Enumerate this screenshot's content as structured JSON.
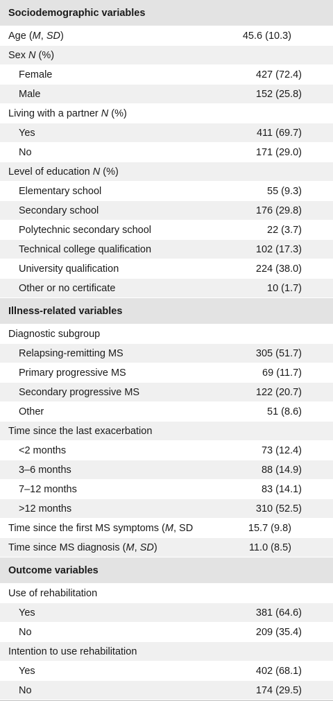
{
  "rows": [
    {
      "type": "section",
      "label": "Sociodemographic variables"
    },
    {
      "type": "row",
      "indent": false,
      "shaded": false,
      "label_html": "Age (<i>M</i>, <i>SD</i>)",
      "value": "45.6 (10.3)"
    },
    {
      "type": "row",
      "indent": false,
      "shaded": true,
      "label_html": "Sex <i>N</i> (%)",
      "value": ""
    },
    {
      "type": "row",
      "indent": true,
      "shaded": false,
      "label_html": "Female",
      "value": "427 (72.4)"
    },
    {
      "type": "row",
      "indent": true,
      "shaded": true,
      "label_html": "Male",
      "value": "152 (25.8)"
    },
    {
      "type": "row",
      "indent": false,
      "shaded": false,
      "label_html": "Living with a partner <i>N</i> (%)",
      "value": ""
    },
    {
      "type": "row",
      "indent": true,
      "shaded": true,
      "label_html": "Yes",
      "value": "411 (69.7)"
    },
    {
      "type": "row",
      "indent": true,
      "shaded": false,
      "label_html": "No",
      "value": "171 (29.0)"
    },
    {
      "type": "row",
      "indent": false,
      "shaded": true,
      "label_html": "Level of education <i>N</i> (%)",
      "value": ""
    },
    {
      "type": "row",
      "indent": true,
      "shaded": false,
      "label_html": "Elementary school",
      "value": "55 (9.3)"
    },
    {
      "type": "row",
      "indent": true,
      "shaded": true,
      "label_html": "Secondary school",
      "value": "176 (29.8)"
    },
    {
      "type": "row",
      "indent": true,
      "shaded": false,
      "label_html": "Polytechnic secondary school",
      "value": "22 (3.7)"
    },
    {
      "type": "row",
      "indent": true,
      "shaded": true,
      "label_html": "Technical college qualification",
      "value": "102 (17.3)"
    },
    {
      "type": "row",
      "indent": true,
      "shaded": false,
      "label_html": "University qualification",
      "value": "224 (38.0)"
    },
    {
      "type": "row",
      "indent": true,
      "shaded": true,
      "label_html": "Other or no certificate",
      "value": "10 (1.7)"
    },
    {
      "type": "section",
      "label": "Illness-related variables"
    },
    {
      "type": "row",
      "indent": false,
      "shaded": false,
      "label_html": "Diagnostic subgroup",
      "value": ""
    },
    {
      "type": "row",
      "indent": true,
      "shaded": true,
      "label_html": "Relapsing-remitting MS",
      "value": "305 (51.7)"
    },
    {
      "type": "row",
      "indent": true,
      "shaded": false,
      "label_html": "Primary progressive MS",
      "value": "69 (11.7)"
    },
    {
      "type": "row",
      "indent": true,
      "shaded": true,
      "label_html": "Secondary progressive MS",
      "value": "122 (20.7)"
    },
    {
      "type": "row",
      "indent": true,
      "shaded": false,
      "label_html": "Other",
      "value": "51 (8.6)"
    },
    {
      "type": "row",
      "indent": false,
      "shaded": true,
      "label_html": "Time since the last exacerbation",
      "value": ""
    },
    {
      "type": "row",
      "indent": true,
      "shaded": false,
      "label_html": "&lt;2 months",
      "value": "73 (12.4)"
    },
    {
      "type": "row",
      "indent": true,
      "shaded": true,
      "label_html": "3–6 months",
      "value": "88 (14.9)"
    },
    {
      "type": "row",
      "indent": true,
      "shaded": false,
      "label_html": "7–12 months",
      "value": "83 (14.1)"
    },
    {
      "type": "row",
      "indent": true,
      "shaded": true,
      "label_html": "&gt;12 months",
      "value": "310 (52.5)"
    },
    {
      "type": "row",
      "indent": false,
      "shaded": false,
      "label_html": "Time since the first MS symptoms (<i>M</i>, SD",
      "value": "15.7 (9.8)"
    },
    {
      "type": "row",
      "indent": false,
      "shaded": true,
      "label_html": "Time since MS diagnosis (<i>M</i>, <i>SD</i>)",
      "value": "11.0 (8.5)"
    },
    {
      "type": "section",
      "label": "Outcome variables"
    },
    {
      "type": "row",
      "indent": false,
      "shaded": false,
      "label_html": "Use of rehabilitation",
      "value": ""
    },
    {
      "type": "row",
      "indent": true,
      "shaded": true,
      "label_html": "Yes",
      "value": "381 (64.6)"
    },
    {
      "type": "row",
      "indent": true,
      "shaded": false,
      "label_html": "No",
      "value": "209 (35.4)"
    },
    {
      "type": "row",
      "indent": false,
      "shaded": true,
      "label_html": "Intention to use rehabilitation",
      "value": ""
    },
    {
      "type": "row",
      "indent": true,
      "shaded": false,
      "label_html": "Yes",
      "value": "402 (68.1)"
    },
    {
      "type": "row",
      "indent": true,
      "shaded": true,
      "label_html": "No",
      "value": "174 (29.5)"
    }
  ]
}
